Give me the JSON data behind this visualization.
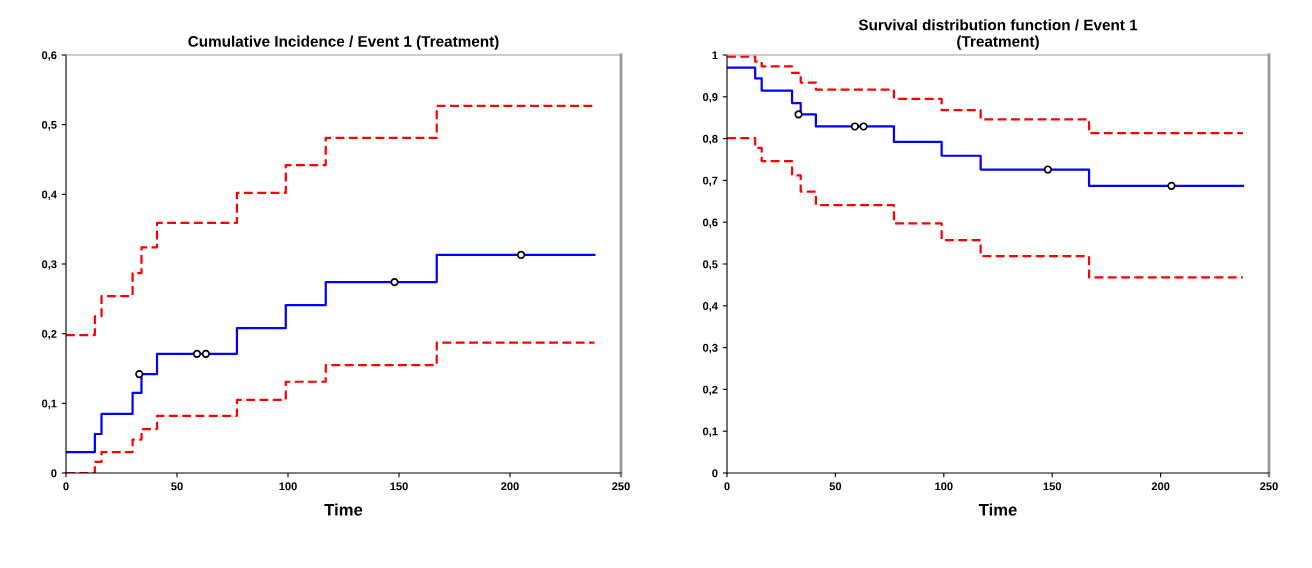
{
  "chart_data": [
    {
      "type": "step",
      "title": "Cumulative Incidence / Event 1 (Treatment)",
      "xlabel": "Time",
      "xlim": [
        0,
        250
      ],
      "xticks": [
        0,
        50,
        100,
        150,
        200,
        250
      ],
      "ylim": [
        0,
        0.6
      ],
      "yticks": [
        0,
        {
          "value": 0.1,
          "label": "0,1"
        },
        {
          "value": 0.2,
          "label": "0,2"
        },
        {
          "value": 0.3,
          "label": "0,3"
        },
        {
          "value": 0.4,
          "label": "0,4"
        },
        {
          "value": 0.5,
          "label": "0,5"
        },
        {
          "value": 0.6,
          "label": "0,6"
        }
      ],
      "grid": false,
      "legend": false,
      "series": [
        {
          "color": "#0000ff",
          "line_style": "solid",
          "x": [
            0,
            13,
            16,
            30,
            34,
            41,
            77,
            99,
            117,
            167,
            238
          ],
          "values": [
            0.03,
            0.056,
            0.085,
            0.115,
            0.142,
            0.171,
            0.208,
            0.241,
            0.274,
            0.313,
            0.313
          ]
        },
        {
          "color": "#ff0000",
          "line_style": "dashed",
          "x": [
            0,
            13,
            16,
            30,
            34,
            41,
            77,
            99,
            117,
            167,
            238
          ],
          "values": [
            0.198,
            0.225,
            0.254,
            0.287,
            0.324,
            0.359,
            0.402,
            0.442,
            0.481,
            0.527,
            0.527
          ]
        },
        {
          "color": "#ff0000",
          "line_style": "dashed",
          "x": [
            0,
            13,
            16,
            30,
            34,
            41,
            77,
            99,
            117,
            167,
            238
          ],
          "values": [
            0.0,
            0.016,
            0.03,
            0.048,
            0.063,
            0.082,
            0.105,
            0.131,
            0.155,
            0.187,
            0.187
          ]
        },
        {
          "type": "scatter",
          "color": "#000000",
          "marker": "circle",
          "x": [
            33,
            59,
            63,
            148,
            205
          ],
          "values": [
            0.142,
            0.171,
            0.171,
            0.274,
            0.313
          ]
        }
      ]
    },
    {
      "type": "step",
      "title": "Survival distribution function / Event 1\n(Treatment)",
      "xlabel": "Time",
      "xlim": [
        0,
        250
      ],
      "xticks": [
        0,
        50,
        100,
        150,
        200,
        250
      ],
      "ylim": [
        0,
        1
      ],
      "yticks": [
        0,
        {
          "value": 0.1,
          "label": "0,1"
        },
        {
          "value": 0.2,
          "label": "0,2"
        },
        {
          "value": 0.3,
          "label": "0,3"
        },
        {
          "value": 0.4,
          "label": "0,4"
        },
        {
          "value": 0.5,
          "label": "0,5"
        },
        {
          "value": 0.6,
          "label": "0,6"
        },
        {
          "value": 0.7,
          "label": "0,7"
        },
        {
          "value": 0.8,
          "label": "0,8"
        },
        {
          "value": 0.9,
          "label": "0,9"
        },
        1
      ],
      "grid": false,
      "legend": false,
      "series": [
        {
          "color": "#0000ff",
          "line_style": "solid",
          "x": [
            0,
            13,
            16,
            30,
            34,
            41,
            77,
            99,
            117,
            167,
            238
          ],
          "values": [
            0.97,
            0.944,
            0.915,
            0.885,
            0.858,
            0.829,
            0.792,
            0.759,
            0.726,
            0.687,
            0.687
          ]
        },
        {
          "color": "#ff0000",
          "line_style": "dashed",
          "x": [
            0,
            13,
            16,
            30,
            34,
            41,
            77,
            99,
            117,
            167,
            238
          ],
          "values": [
            0.996,
            0.984,
            0.973,
            0.957,
            0.934,
            0.917,
            0.895,
            0.868,
            0.846,
            0.813,
            0.813
          ]
        },
        {
          "color": "#ff0000",
          "line_style": "dashed",
          "x": [
            0,
            13,
            16,
            30,
            34,
            41,
            77,
            99,
            117,
            167,
            238
          ],
          "values": [
            0.801,
            0.778,
            0.746,
            0.712,
            0.673,
            0.641,
            0.597,
            0.557,
            0.519,
            0.468,
            0.468
          ]
        },
        {
          "type": "scatter",
          "color": "#000000",
          "marker": "circle",
          "x": [
            33,
            59,
            63,
            148,
            205
          ],
          "values": [
            0.858,
            0.829,
            0.829,
            0.726,
            0.687
          ]
        }
      ]
    }
  ]
}
